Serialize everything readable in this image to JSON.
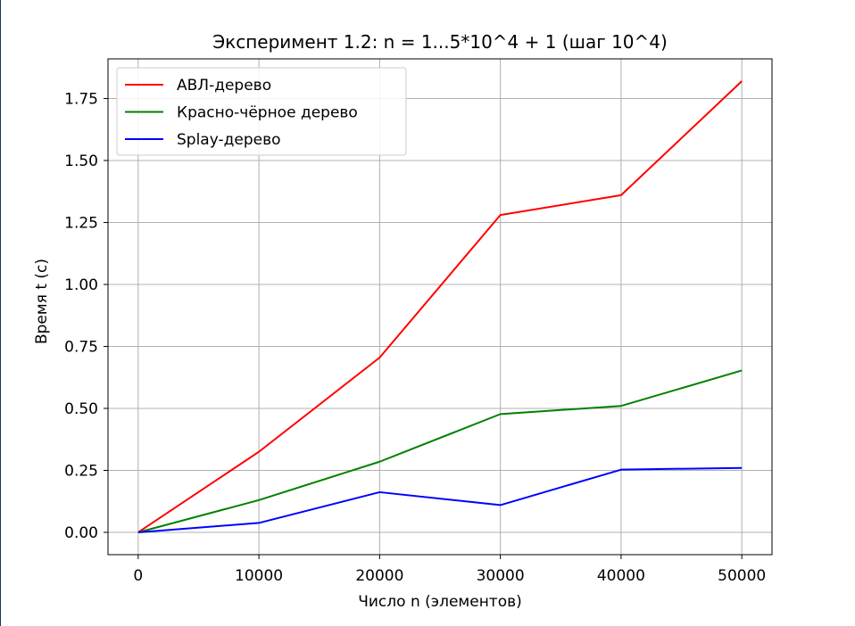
{
  "colors": {
    "background": "#ffffff",
    "grid": "#b0b0b0",
    "axes": "#000000",
    "left_edge_strip": "#1a3a4a"
  },
  "chart_data": {
    "type": "line",
    "title": "Эксперимент 1.2: n = 1...5*10^4 + 1 (шаг 10^4)",
    "xlabel": "Число n (элементов)",
    "ylabel": "Время t (c)",
    "x": [
      1,
      10001,
      20001,
      30001,
      40001,
      50001
    ],
    "xlim": [
      -2500,
      52500
    ],
    "ylim": [
      -0.09,
      1.91
    ],
    "x_ticks": [
      0,
      10000,
      20000,
      30000,
      40000,
      50000
    ],
    "x_tick_labels": [
      "0",
      "10000",
      "20000",
      "30000",
      "40000",
      "50000"
    ],
    "y_ticks": [
      0,
      0.25,
      0.5,
      0.75,
      1.0,
      1.25,
      1.5,
      1.75
    ],
    "y_tick_labels": [
      "0.00",
      "0.25",
      "0.50",
      "0.75",
      "1.00",
      "1.25",
      "1.50",
      "1.75"
    ],
    "grid": true,
    "legend_position": "top-left",
    "series": [
      {
        "name": "АВЛ-дерево",
        "color": "#ff0000",
        "values": [
          0.0,
          0.325,
          0.705,
          1.28,
          1.36,
          1.82
        ]
      },
      {
        "name": "Красно-чёрное дерево",
        "color": "#008000",
        "values": [
          0.0,
          0.13,
          0.285,
          0.477,
          0.51,
          0.653
        ]
      },
      {
        "name": "Splay-дерево",
        "color": "#0000ff",
        "values": [
          0.0,
          0.038,
          0.162,
          0.11,
          0.253,
          0.26
        ]
      }
    ]
  }
}
